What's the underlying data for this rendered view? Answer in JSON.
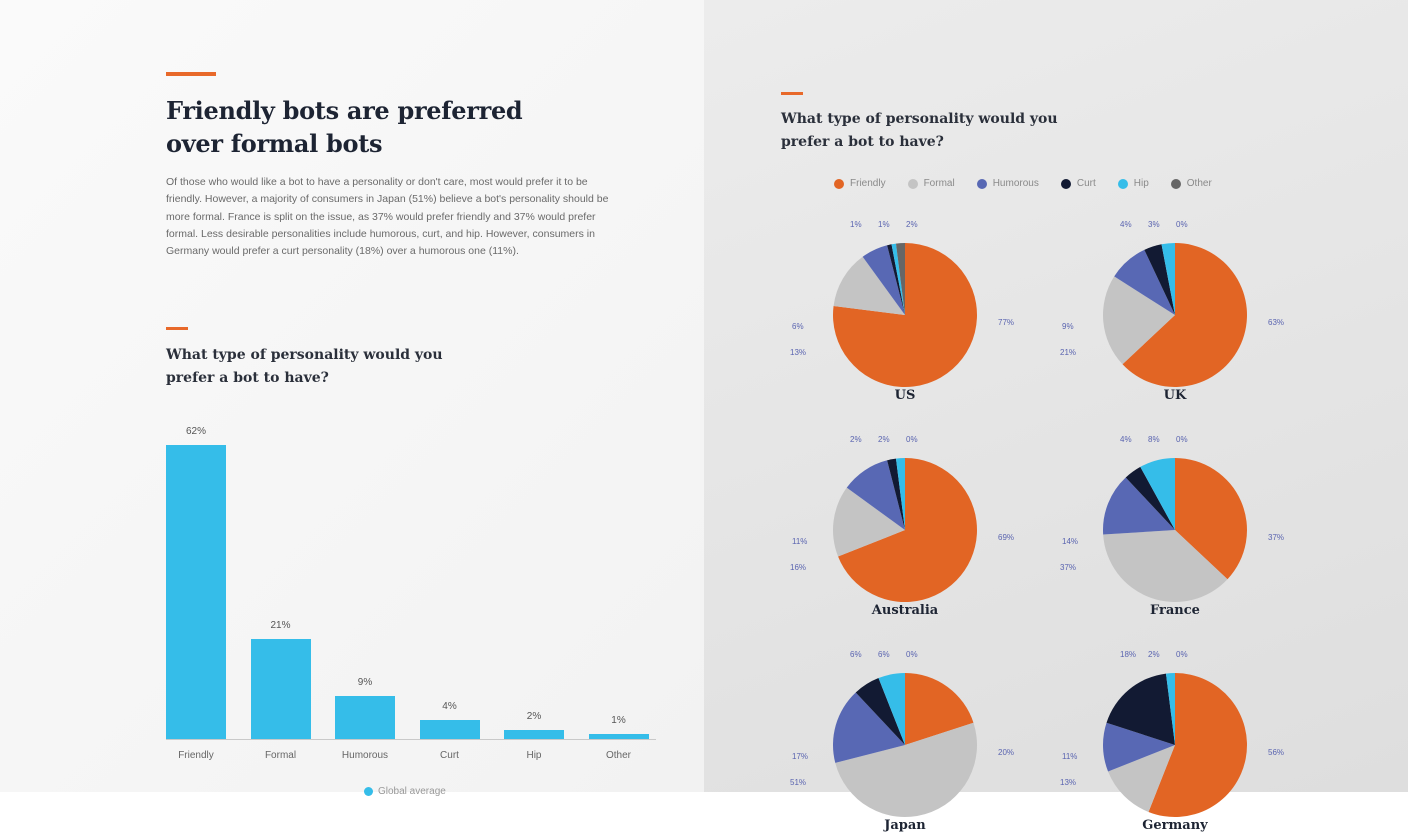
{
  "left": {
    "headline": "Friendly bots are preferred over formal bots",
    "body": "Of those who would like a bot to have a personality or don't care, most would prefer it to be friendly. However, a majority of consumers in Japan (51%) believe a bot's personality should be more formal. France is split on the issue, as 37% would prefer friendly and 37% would prefer formal. Less desirable personalities include humorous, curt, and hip. However, consumers in Germany would prefer a curt personality (18%) over a humorous one (11%).",
    "chart_title": "What type of personality would you prefer a bot to have?",
    "legend_label": "Global average"
  },
  "right": {
    "chart_title": "What type of personality would you prefer a bot to have?",
    "legend": [
      {
        "label": "Friendly",
        "color": "#e26524"
      },
      {
        "label": "Formal",
        "color": "#c4c4c4"
      },
      {
        "label": "Humorous",
        "color": "#5868b4"
      },
      {
        "label": "Curt",
        "color": "#121a33"
      },
      {
        "label": "Hip",
        "color": "#35bde9"
      },
      {
        "label": "Other",
        "color": "#666666"
      }
    ]
  },
  "colors": {
    "accent": "#e8692a",
    "bar": "#35bde9"
  },
  "chart_data": [
    {
      "type": "bar",
      "title": "What type of personality would you prefer a bot to have?",
      "categories": [
        "Friendly",
        "Formal",
        "Humorous",
        "Curt",
        "Hip",
        "Other"
      ],
      "values": [
        62,
        21,
        9,
        4,
        2,
        1
      ],
      "value_labels": [
        "62%",
        "21%",
        "9%",
        "4%",
        "2%",
        "1%"
      ],
      "series_name": "Global average",
      "xlabel": "",
      "ylabel": "",
      "ylim": [
        0,
        65
      ],
      "grid": false
    },
    {
      "type": "pie",
      "title": "What type of personality would you prefer a bot to have?",
      "categories": [
        "Friendly",
        "Formal",
        "Humorous",
        "Curt",
        "Hip",
        "Other"
      ],
      "series": [
        {
          "name": "US",
          "values": [
            77,
            13,
            6,
            1,
            1,
            2
          ]
        },
        {
          "name": "UK",
          "values": [
            63,
            21,
            9,
            4,
            3,
            0
          ]
        },
        {
          "name": "Australia",
          "values": [
            69,
            16,
            11,
            2,
            2,
            0
          ]
        },
        {
          "name": "France",
          "values": [
            37,
            37,
            14,
            4,
            8,
            0
          ]
        },
        {
          "name": "Japan",
          "values": [
            20,
            51,
            17,
            6,
            6,
            0
          ]
        },
        {
          "name": "Germany",
          "values": [
            56,
            13,
            11,
            18,
            2,
            0
          ]
        }
      ],
      "legend_position": "top"
    }
  ]
}
